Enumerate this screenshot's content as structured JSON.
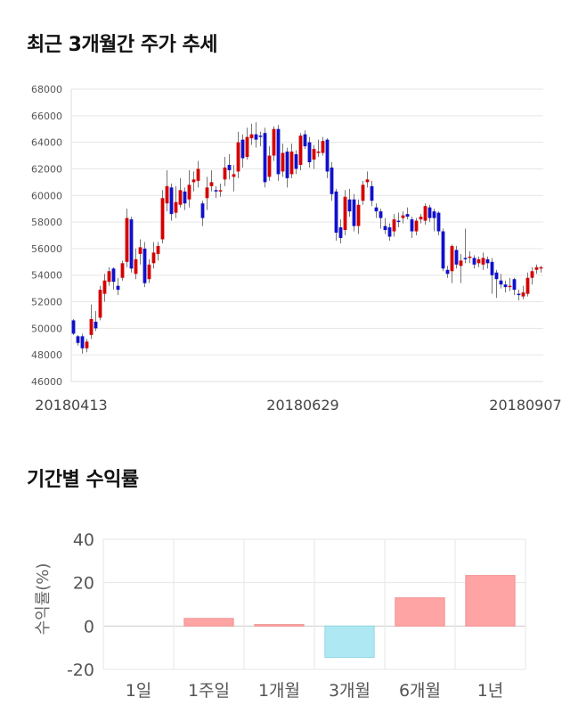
{
  "titles": {
    "price": "최근 3개월간 주가 추세",
    "returns": "기간별 수익률"
  },
  "colors": {
    "up": "#d40000",
    "down": "#1010cc",
    "positive_bar": "#ffa4a4",
    "negative_bar": "#aee8f2",
    "grid": "#e6e6e6"
  },
  "chart_data": [
    {
      "type": "candlestick",
      "title": "최근 3개월간 주가 추세",
      "ylim": [
        46000,
        68000
      ],
      "y_ticks": [
        "46000",
        "48000",
        "50000",
        "52000",
        "54000",
        "56000",
        "58000",
        "60000",
        "62000",
        "64000",
        "66000",
        "68000"
      ],
      "x_ticks": [
        "20180413",
        "20180629",
        "20180907"
      ],
      "grid": true,
      "candles": [
        [
          50600,
          49600,
          50700,
          49500
        ],
        [
          49400,
          48900,
          49500,
          48700
        ],
        [
          49400,
          48500,
          49600,
          48100
        ],
        [
          48500,
          49000,
          49200,
          48200
        ],
        [
          49500,
          50700,
          51800,
          49200
        ],
        [
          50500,
          50000,
          51300,
          49800
        ],
        [
          50800,
          52900,
          53200,
          50600
        ],
        [
          52600,
          53600,
          54100,
          52000
        ],
        [
          53500,
          54300,
          54600,
          53200
        ],
        [
          54500,
          53500,
          54600,
          52900
        ],
        [
          53200,
          52900,
          53800,
          52500
        ],
        [
          53800,
          54900,
          55100,
          53600
        ],
        [
          55000,
          58300,
          59000,
          54600
        ],
        [
          58200,
          54500,
          58400,
          54200
        ],
        [
          54100,
          55200,
          56000,
          53700
        ],
        [
          55600,
          56100,
          56700,
          54800
        ],
        [
          56000,
          53400,
          56500,
          53100
        ],
        [
          53700,
          54800,
          55200,
          53400
        ],
        [
          54900,
          55700,
          56500,
          54500
        ],
        [
          55600,
          56200,
          56500,
          55100
        ],
        [
          56700,
          59800,
          60400,
          56400
        ],
        [
          59400,
          60700,
          61900,
          58800
        ],
        [
          60600,
          58600,
          60900,
          58100
        ],
        [
          58700,
          59500,
          60700,
          58300
        ],
        [
          59300,
          60400,
          61300,
          59100
        ],
        [
          60300,
          59400,
          60600,
          58900
        ],
        [
          59700,
          60800,
          61900,
          59100
        ],
        [
          61000,
          61200,
          61800,
          60300
        ],
        [
          61100,
          62000,
          62600,
          60600
        ],
        [
          59400,
          58300,
          59600,
          57700
        ],
        [
          59800,
          60600,
          61400,
          58900
        ],
        [
          60700,
          61000,
          61900,
          60300
        ],
        [
          60400,
          60300,
          60700,
          59800
        ],
        [
          60300,
          60400,
          60900,
          59900
        ],
        [
          61200,
          62100,
          62900,
          60700
        ],
        [
          62300,
          61900,
          63100,
          61200
        ],
        [
          61400,
          61600,
          62300,
          60300
        ],
        [
          61800,
          64000,
          64800,
          61300
        ],
        [
          64200,
          62800,
          64600,
          62100
        ],
        [
          62900,
          64400,
          65100,
          62700
        ],
        [
          64300,
          64600,
          65400,
          63800
        ],
        [
          64600,
          64200,
          65500,
          63600
        ],
        [
          64500,
          64400,
          64800,
          63700
        ],
        [
          64700,
          61000,
          65100,
          60600
        ],
        [
          61400,
          63000,
          63700,
          61100
        ],
        [
          63000,
          65000,
          65200,
          62600
        ],
        [
          65000,
          61600,
          65300,
          61100
        ],
        [
          61800,
          63200,
          63900,
          61400
        ],
        [
          63300,
          61300,
          63600,
          60600
        ],
        [
          61600,
          63300,
          63900,
          61300
        ],
        [
          63100,
          62000,
          63400,
          61600
        ],
        [
          62300,
          64500,
          64700,
          61900
        ],
        [
          64600,
          63700,
          64900,
          63500
        ],
        [
          64000,
          62500,
          64400,
          62100
        ],
        [
          62700,
          63500,
          63800,
          62000
        ],
        [
          63300,
          63300,
          64200,
          62900
        ],
        [
          63200,
          64100,
          64400,
          63000
        ],
        [
          64200,
          61800,
          64300,
          61300
        ],
        [
          62100,
          60100,
          62500,
          59600
        ],
        [
          60300,
          57200,
          60500,
          56600
        ],
        [
          57600,
          56800,
          58200,
          56400
        ],
        [
          57400,
          59900,
          60400,
          57000
        ],
        [
          59700,
          58800,
          60500,
          58400
        ],
        [
          59700,
          57700,
          60100,
          57300
        ],
        [
          57700,
          59300,
          59700,
          57100
        ],
        [
          59600,
          60800,
          61100,
          59300
        ],
        [
          61000,
          61200,
          61800,
          60600
        ],
        [
          60700,
          59600,
          61100,
          59200
        ],
        [
          59100,
          58800,
          59400,
          58300
        ],
        [
          58800,
          58300,
          59000,
          57500
        ],
        [
          57700,
          57400,
          58300,
          57100
        ],
        [
          57600,
          56900,
          57900,
          56600
        ],
        [
          57300,
          58200,
          58600,
          56900
        ],
        [
          58100,
          58000,
          58700,
          57600
        ],
        [
          58300,
          58500,
          58800,
          57900
        ],
        [
          58600,
          58400,
          59100,
          58200
        ],
        [
          58200,
          57300,
          58400,
          56800
        ],
        [
          57300,
          58100,
          58300,
          57000
        ],
        [
          58200,
          58400,
          58600,
          57900
        ],
        [
          58100,
          59200,
          59400,
          57800
        ],
        [
          59100,
          58300,
          59300,
          58000
        ],
        [
          58800,
          58300,
          59000,
          57300
        ],
        [
          58700,
          57300,
          58800,
          57000
        ],
        [
          57300,
          54500,
          57500,
          54300
        ],
        [
          54400,
          54100,
          54700,
          53800
        ],
        [
          54300,
          56200,
          56300,
          53400
        ],
        [
          55900,
          54800,
          56200,
          54500
        ],
        [
          54700,
          55100,
          55600,
          53400
        ],
        [
          55300,
          55200,
          57500,
          54900
        ],
        [
          55300,
          55400,
          55800,
          54900
        ],
        [
          55300,
          54800,
          55500,
          54500
        ],
        [
          54900,
          55200,
          55400,
          54600
        ],
        [
          54800,
          55300,
          55700,
          54400
        ],
        [
          55200,
          54900,
          55400,
          54500
        ],
        [
          55000,
          54000,
          55300,
          52600
        ],
        [
          54200,
          53700,
          54400,
          52300
        ],
        [
          53600,
          53300,
          54100,
          53000
        ],
        [
          53300,
          53100,
          53600,
          52700
        ],
        [
          53200,
          53200,
          53800,
          52800
        ],
        [
          53700,
          52900,
          53800,
          52500
        ],
        [
          52600,
          52500,
          52900,
          52100
        ],
        [
          52400,
          52700,
          53200,
          52200
        ],
        [
          52600,
          53800,
          54200,
          52400
        ],
        [
          53800,
          54300,
          54600,
          53300
        ],
        [
          54400,
          54600,
          54800,
          54100
        ],
        [
          54500,
          54600,
          54700,
          54200
        ]
      ]
    },
    {
      "type": "bar",
      "title": "기간별 수익률",
      "ylabel": "수익률(%)",
      "categories": [
        "1일",
        "1주일",
        "1개월",
        "3개월",
        "6개월",
        "1년"
      ],
      "values": [
        0,
        3.5,
        0.7,
        -14.5,
        13,
        23.3
      ],
      "ylim": [
        -20,
        40
      ],
      "y_ticks": [
        "-20",
        "0",
        "20",
        "40"
      ],
      "grid": true
    }
  ]
}
